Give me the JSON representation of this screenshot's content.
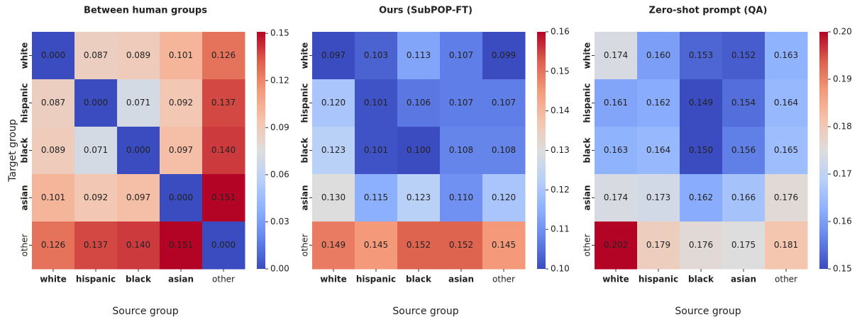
{
  "chart_data": [
    {
      "type": "heatmap",
      "title": "Between human groups",
      "xlabel": "Source group",
      "ylabel": "Target group",
      "x_categories": [
        "white",
        "hispanic",
        "black",
        "asian",
        "other"
      ],
      "y_categories": [
        "white",
        "hispanic",
        "black",
        "asian",
        "other"
      ],
      "label_bold": [
        true,
        true,
        true,
        true,
        false
      ],
      "colormap": "coolwarm",
      "values": [
        [
          0.0,
          0.087,
          0.089,
          0.101,
          0.126
        ],
        [
          0.087,
          0.0,
          0.071,
          0.092,
          0.137
        ],
        [
          0.089,
          0.071,
          0.0,
          0.097,
          0.14
        ],
        [
          0.101,
          0.092,
          0.097,
          0.0,
          0.151
        ],
        [
          0.126,
          0.137,
          0.14,
          0.151,
          0.0
        ]
      ],
      "value_labels": [
        [
          "0.000",
          "0.087",
          "0.089",
          "0.101",
          "0.126"
        ],
        [
          "0.087",
          "0.000",
          "0.071",
          "0.092",
          "0.137"
        ],
        [
          "0.089",
          "0.071",
          "0.000",
          "0.097",
          "0.140"
        ],
        [
          "0.101",
          "0.092",
          "0.097",
          "0.000",
          "0.151"
        ],
        [
          "0.126",
          "0.137",
          "0.140",
          "0.151",
          "0.000"
        ]
      ],
      "zlim": [
        0,
        0.151
      ],
      "zticks": [
        {
          "value": 0,
          "label": "0.00"
        },
        {
          "value": 0.03,
          "label": "0.03"
        },
        {
          "value": 0.06,
          "label": "0.06"
        },
        {
          "value": 0.09,
          "label": "0.09"
        },
        {
          "value": 0.12,
          "label": "0.12"
        },
        {
          "value": 0.15,
          "label": "0.15"
        }
      ]
    },
    {
      "type": "heatmap",
      "title": "Ours (SubPOP-FT)",
      "xlabel": "Source group",
      "x_categories": [
        "white",
        "hispanic",
        "black",
        "asian",
        "other"
      ],
      "y_categories": [
        "white",
        "hispanic",
        "black",
        "asian",
        "other"
      ],
      "label_bold": [
        true,
        true,
        true,
        true,
        false
      ],
      "colormap": "coolwarm",
      "values": [
        [
          0.097,
          0.103,
          0.113,
          0.107,
          0.099
        ],
        [
          0.12,
          0.101,
          0.106,
          0.107,
          0.107
        ],
        [
          0.123,
          0.101,
          0.1,
          0.108,
          0.108
        ],
        [
          0.13,
          0.115,
          0.123,
          0.11,
          0.12
        ],
        [
          0.149,
          0.145,
          0.152,
          0.152,
          0.145
        ]
      ],
      "value_labels": [
        [
          "0.097",
          "0.103",
          "0.113",
          "0.107",
          "0.099"
        ],
        [
          "0.120",
          "0.101",
          "0.106",
          "0.107",
          "0.107"
        ],
        [
          "0.123",
          "0.101",
          "0.100",
          "0.108",
          "0.108"
        ],
        [
          "0.130",
          "0.115",
          "0.123",
          "0.110",
          "0.120"
        ],
        [
          "0.149",
          "0.145",
          "0.152",
          "0.152",
          "0.145"
        ]
      ],
      "zlim": [
        0.1,
        0.16
      ],
      "zticks": [
        {
          "value": 0.1,
          "label": "0.10"
        },
        {
          "value": 0.11,
          "label": "0.11"
        },
        {
          "value": 0.12,
          "label": "0.12"
        },
        {
          "value": 0.13,
          "label": "0.13"
        },
        {
          "value": 0.14,
          "label": "0.14"
        },
        {
          "value": 0.15,
          "label": "0.15"
        },
        {
          "value": 0.16,
          "label": "0.16"
        }
      ]
    },
    {
      "type": "heatmap",
      "title": "Zero-shot prompt (QA)",
      "xlabel": "Source group",
      "x_categories": [
        "white",
        "hispanic",
        "black",
        "asian",
        "other"
      ],
      "y_categories": [
        "white",
        "hispanic",
        "black",
        "asian",
        "other"
      ],
      "label_bold": [
        true,
        true,
        true,
        true,
        false
      ],
      "colormap": "coolwarm",
      "values": [
        [
          0.174,
          0.16,
          0.153,
          0.152,
          0.163
        ],
        [
          0.161,
          0.162,
          0.149,
          0.154,
          0.164
        ],
        [
          0.163,
          0.164,
          0.15,
          0.156,
          0.165
        ],
        [
          0.174,
          0.173,
          0.162,
          0.166,
          0.176
        ],
        [
          0.202,
          0.179,
          0.176,
          0.175,
          0.181
        ]
      ],
      "value_labels": [
        [
          "0.174",
          "0.160",
          "0.153",
          "0.152",
          "0.163"
        ],
        [
          "0.161",
          "0.162",
          "0.149",
          "0.154",
          "0.164"
        ],
        [
          "0.163",
          "0.164",
          "0.150",
          "0.156",
          "0.165"
        ],
        [
          "0.174",
          "0.173",
          "0.162",
          "0.166",
          "0.176"
        ],
        [
          "0.202",
          "0.179",
          "0.176",
          "0.175",
          "0.181"
        ]
      ],
      "zlim": [
        0.15,
        0.2
      ],
      "zticks": [
        {
          "value": 0.15,
          "label": "0.15"
        },
        {
          "value": 0.16,
          "label": "0.16"
        },
        {
          "value": 0.17,
          "label": "0.17"
        },
        {
          "value": 0.18,
          "label": "0.18"
        },
        {
          "value": 0.19,
          "label": "0.19"
        },
        {
          "value": 0.2,
          "label": "0.20"
        }
      ]
    }
  ]
}
